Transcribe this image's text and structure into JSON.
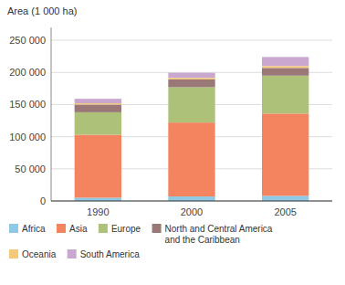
{
  "chart_data": {
    "type": "bar",
    "stacked": true,
    "grid": true,
    "legend": "bottom",
    "y_label": "Area (1 000 ha)",
    "categories": [
      "1990",
      "2000",
      "2005"
    ],
    "series": [
      {
        "name": "Africa",
        "color": "#8ecae6",
        "values": [
          5000,
          7000,
          8000
        ]
      },
      {
        "name": "Asia",
        "color": "#f4845f",
        "values": [
          98000,
          115000,
          128000
        ]
      },
      {
        "name": "Europe",
        "color": "#adc178",
        "values": [
          35000,
          55000,
          59000
        ]
      },
      {
        "name": "North and Central America\nand the Caribbean",
        "color": "#9b7878",
        "values": [
          12000,
          12000,
          12000
        ]
      },
      {
        "name": "Oceania",
        "color": "#f5c97a",
        "values": [
          2000,
          2500,
          3000
        ]
      },
      {
        "name": "South America",
        "color": "#c9a8d0",
        "values": [
          7000,
          8000,
          14000
        ]
      }
    ],
    "ylim": [
      0,
      270000
    ],
    "yticks": [
      0,
      {
        "value": 50000,
        "label": "50 000"
      },
      {
        "value": 100000,
        "label": "100 000"
      },
      {
        "value": 150000,
        "label": "150 000"
      },
      {
        "value": 200000,
        "label": "200 000"
      },
      {
        "value": 250000,
        "label": "250 000"
      }
    ]
  }
}
